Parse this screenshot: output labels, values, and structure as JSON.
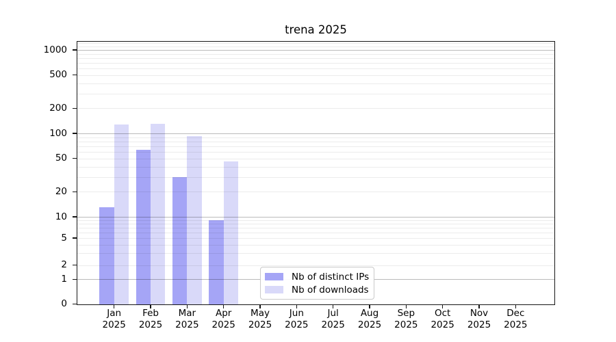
{
  "chart_data": {
    "type": "bar",
    "title": "trena 2025",
    "categories": [
      "Jan",
      "Feb",
      "Mar",
      "Apr",
      "May",
      "Jun",
      "Jul",
      "Aug",
      "Sep",
      "Oct",
      "Nov",
      "Dec"
    ],
    "category_year": "2025",
    "series": [
      {
        "name": "Nb of distinct IPs",
        "color": "#a5a5f6",
        "values": [
          13,
          64,
          30,
          9,
          0,
          0,
          0,
          0,
          0,
          0,
          0,
          0
        ]
      },
      {
        "name": "Nb of downloads",
        "color": "#d9d9f9",
        "values": [
          127,
          130,
          92,
          46,
          0,
          0,
          0,
          0,
          0,
          0,
          0,
          0
        ]
      }
    ],
    "yticks": [
      0,
      1,
      2,
      5,
      10,
      20,
      50,
      100,
      200,
      500,
      1000
    ],
    "grid_major_values": [
      1,
      10,
      100,
      1000
    ],
    "ylim": [
      0,
      1250
    ],
    "yscale": "symlog",
    "xlabel": "",
    "ylabel": "",
    "grid": true,
    "legend_position": "lower center"
  },
  "colors": {
    "background": "#ffffff",
    "spine": "#151515",
    "grid_major": "#bababa",
    "grid_minor": "#ececec"
  }
}
